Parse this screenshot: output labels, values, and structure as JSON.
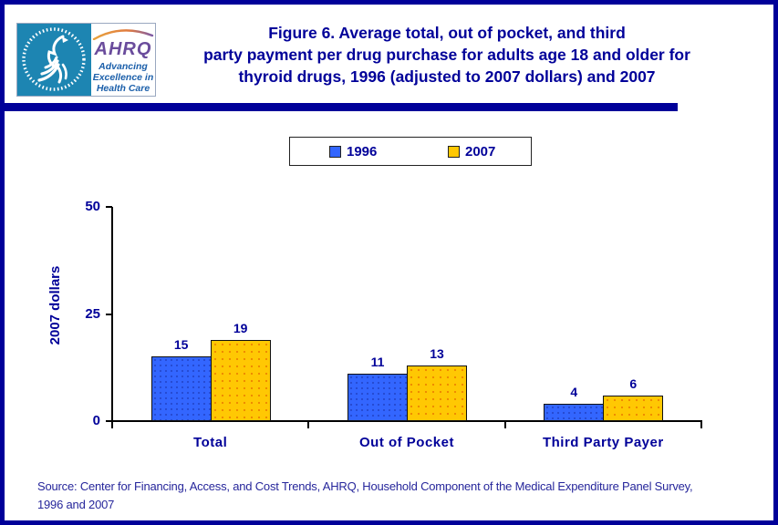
{
  "header": {
    "logo": {
      "seal_ring_text": "DEPARTMENT OF HEALTH & HUMAN SERVICES USA",
      "ahrq_acronym": "AHRQ",
      "tagline_lines": [
        "Advancing",
        "Excellence in",
        "Health Care"
      ]
    },
    "title_lines": [
      "Figure 6. Average total, out of pocket, and third",
      "party payment per drug purchase for adults age 18 and older for",
      "thyroid drugs, 1996 (adjusted to 2007 dollars) and 2007"
    ]
  },
  "legend": {
    "items": [
      {
        "label": "1996",
        "color": "#3366ff"
      },
      {
        "label": "2007",
        "color": "#ffc803"
      }
    ]
  },
  "chart_data": {
    "type": "bar",
    "categories": [
      "Total",
      "Out of Pocket",
      "Third Party Payer"
    ],
    "series": [
      {
        "name": "1996",
        "color": "#3366ff",
        "values": [
          15,
          11,
          4
        ]
      },
      {
        "name": "2007",
        "color": "#ffc803",
        "values": [
          19,
          13,
          6
        ]
      }
    ],
    "title": "Figure 6. Average total, out of pocket, and third party payment per drug purchase for adults age 18 and older for thyroid drugs, 1996 (adjusted to 2007 dollars) and 2007",
    "xlabel": "",
    "ylabel": "2007 dollars",
    "ylim": [
      0,
      50
    ],
    "yticks": [
      0,
      25,
      50
    ],
    "grid": false,
    "legend_position": "top-center",
    "data_labels": true
  },
  "source_lines": [
    "Source: Center for Financing, Access, and Cost Trends, AHRQ, Household Component of the Medical Expenditure Panel Survey,",
    "1996 and 2007"
  ],
  "colors": {
    "navy": "#000099",
    "bar_1996": "#3366ff",
    "bar_2007": "#ffc803",
    "seal_teal": "#1d85b2",
    "ahrq_purple": "#6a4c9c",
    "tagline_blue": "#1b5faa",
    "axis_black": "#000000"
  }
}
